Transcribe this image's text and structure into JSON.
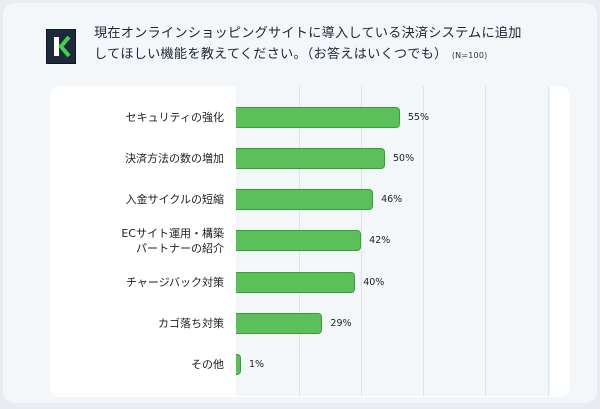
{
  "header": {
    "logo_letter": "K",
    "title_line1": "現在オンラインショッピングサイトに導入している決済システムに追加",
    "title_line2": "してほしい機能を教えてください。（お答えはいくつでも）",
    "sample_size": "(N=100)"
  },
  "colors": {
    "bar": "#5bc05a",
    "bar_border": "#34a233",
    "logo_bg": "#1d2a3d",
    "logo_accent": "#3fd14a"
  },
  "chart_data": {
    "type": "bar",
    "orientation": "horizontal",
    "title": "現在オンラインショッピングサイトに導入している決済システムに追加してほしい機能を教えてください。（お答えはいくつでも）(N=100)",
    "categories": [
      "セキュリティの強化",
      "決済方法の数の増加",
      "入金サイクルの短縮",
      "ECサイト運用・構築パートナーの紹介",
      "チャージバック対策",
      "カゴ落ち対策",
      "その他"
    ],
    "values": [
      55,
      50,
      46,
      42,
      40,
      29,
      1
    ],
    "value_labels": [
      "55%",
      "50%",
      "46%",
      "42%",
      "40%",
      "29%",
      "1%"
    ],
    "unit": "%",
    "grid": true,
    "xlim": [
      0,
      105
    ]
  },
  "rows": [
    {
      "label": "セキュリティの強化",
      "label2": "",
      "value": 55,
      "text": "55%"
    },
    {
      "label": "決済方法の数の増加",
      "label2": "",
      "value": 50,
      "text": "50%"
    },
    {
      "label": "入金サイクルの短縮",
      "label2": "",
      "value": 46,
      "text": "46%"
    },
    {
      "label": "ECサイト運用・構築",
      "label2": "パートナーの紹介",
      "value": 42,
      "text": "42%"
    },
    {
      "label": "チャージバック対策",
      "label2": "",
      "value": 40,
      "text": "40%"
    },
    {
      "label": "カゴ落ち対策",
      "label2": "",
      "value": 29,
      "text": "29%"
    },
    {
      "label": "その他",
      "label2": "",
      "value": 1,
      "text": "1%"
    }
  ]
}
